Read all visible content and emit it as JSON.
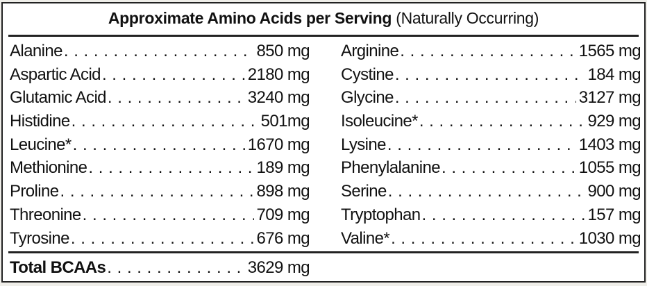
{
  "title": {
    "bold": "Approximate Amino Acids per Serving",
    "normal": "(Naturally Occurring)"
  },
  "left_column": [
    {
      "name": "Alanine",
      "value": "850 mg"
    },
    {
      "name": "Aspartic Acid",
      "value": "2180 mg"
    },
    {
      "name": "Glutamic Acid",
      "value": "3240 mg"
    },
    {
      "name": "Histidine",
      "value": "501mg"
    },
    {
      "name": "Leucine*",
      "value": "1670 mg"
    },
    {
      "name": "Methionine",
      "value": "189 mg"
    },
    {
      "name": "Proline",
      "value": "898 mg"
    },
    {
      "name": "Threonine",
      "value": "709 mg"
    },
    {
      "name": "Tyrosine",
      "value": "676 mg"
    }
  ],
  "right_column": [
    {
      "name": "Arginine",
      "value": "1565 mg"
    },
    {
      "name": "Cystine",
      "value": "184 mg"
    },
    {
      "name": "Glycine",
      "value": "3127 mg"
    },
    {
      "name": "Isoleucine*",
      "value": "929 mg"
    },
    {
      "name": "Lysine",
      "value": "1403 mg"
    },
    {
      "name": "Phenylalanine",
      "value": "1055 mg"
    },
    {
      "name": "Serine",
      "value": "900 mg"
    },
    {
      "name": "Tryptophan",
      "value": "157 mg"
    },
    {
      "name": "Valine*",
      "value": "1030 mg"
    }
  ],
  "total": {
    "name": "Total BCAAs",
    "value": "3629 mg"
  }
}
